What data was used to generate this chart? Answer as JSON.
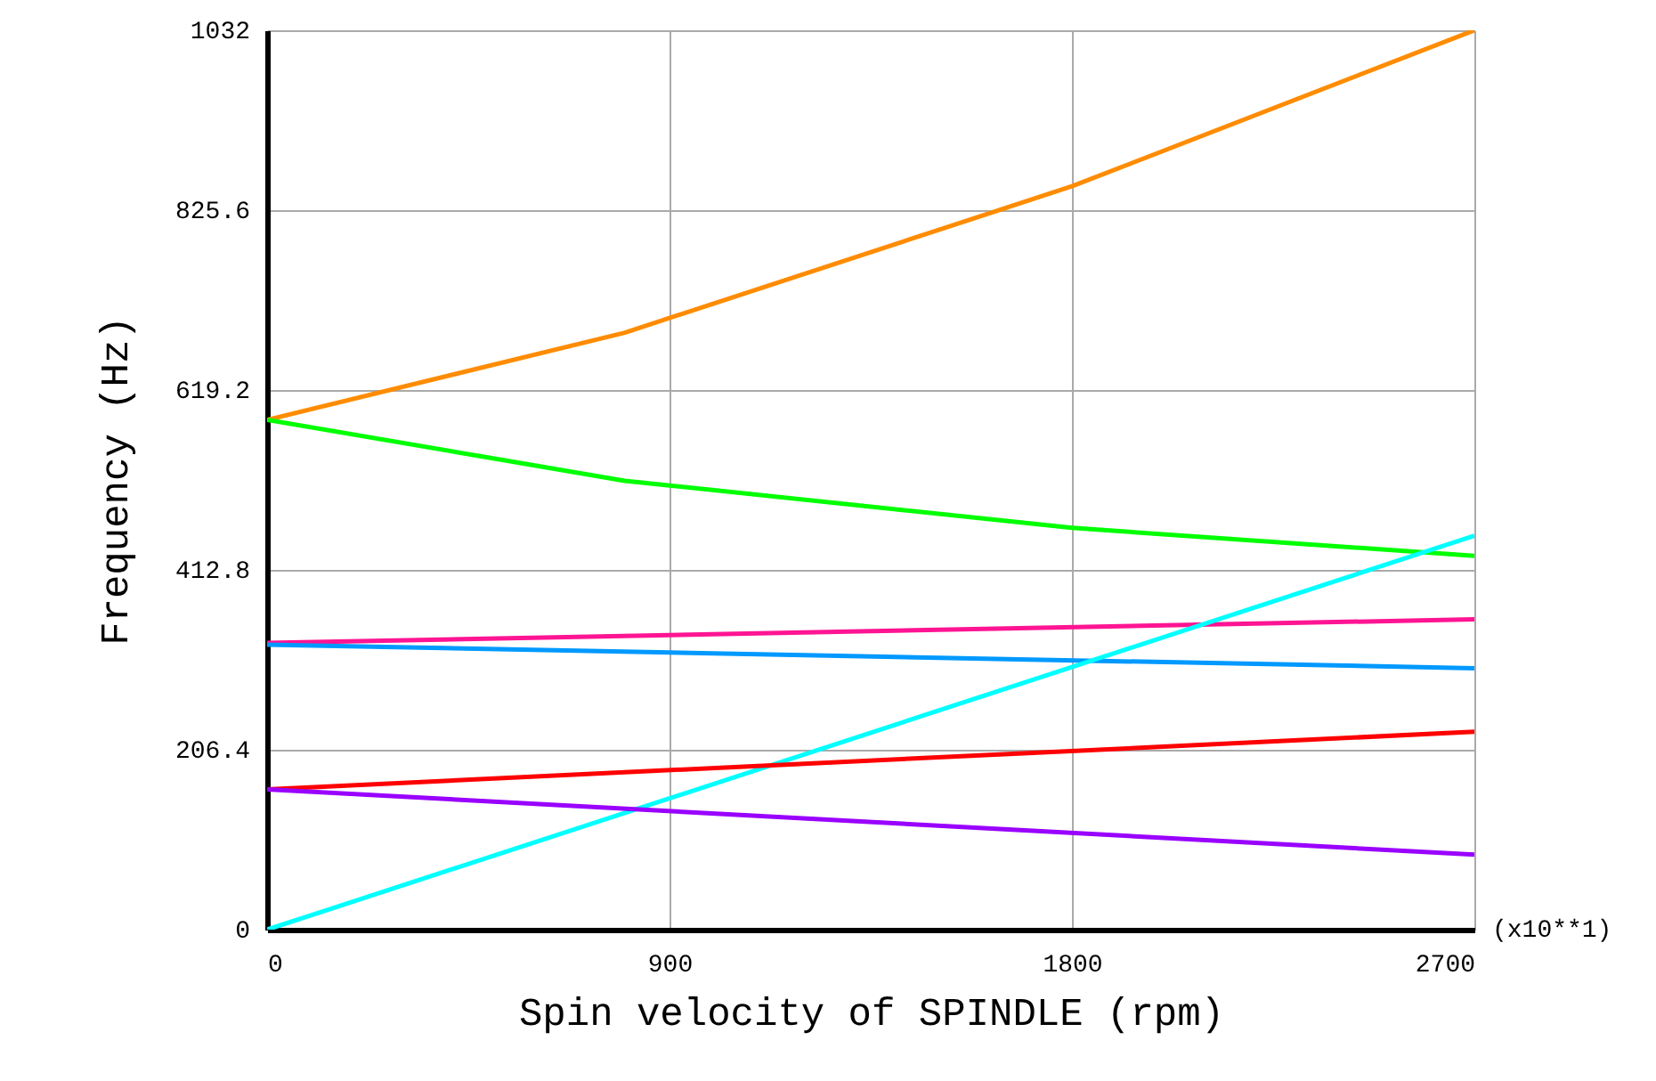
{
  "chart_data": {
    "type": "line",
    "xlabel": "Spin velocity of SPINDLE  (rpm)",
    "ylabel": "Frequency (Hz)",
    "annotations": [
      "(x10**1)"
    ],
    "xlim": [
      0,
      2700
    ],
    "xticks": [
      0,
      900,
      1800,
      2700
    ],
    "ylim": [
      0,
      1032
    ],
    "yticks": [
      0,
      206.4,
      412.8,
      619.2,
      825.6,
      1032
    ],
    "grid": true,
    "marker": "none",
    "line_style": "solid",
    "series": [
      {
        "color": "#ff8c00",
        "x": [
          0,
          800,
          1800,
          2700
        ],
        "values": [
          585,
          685,
          853,
          1032
        ]
      },
      {
        "color": "#00ff00",
        "x": [
          0,
          800,
          1800,
          2700
        ],
        "values": [
          585,
          515,
          461,
          429
        ]
      },
      {
        "color": "#ff1493",
        "x": [
          0,
          2700
        ],
        "values": [
          329,
          356
        ]
      },
      {
        "color": "#0099ff",
        "x": [
          0,
          2700
        ],
        "values": [
          327,
          300
        ]
      },
      {
        "color": "#00ffff",
        "x": [
          0,
          2700
        ],
        "values": [
          0,
          452
        ]
      },
      {
        "color": "#ff0000",
        "x": [
          0,
          2700
        ],
        "values": [
          161,
          227
        ]
      },
      {
        "color": "#9900ff",
        "x": [
          0,
          2700
        ],
        "values": [
          161,
          86
        ]
      }
    ]
  }
}
